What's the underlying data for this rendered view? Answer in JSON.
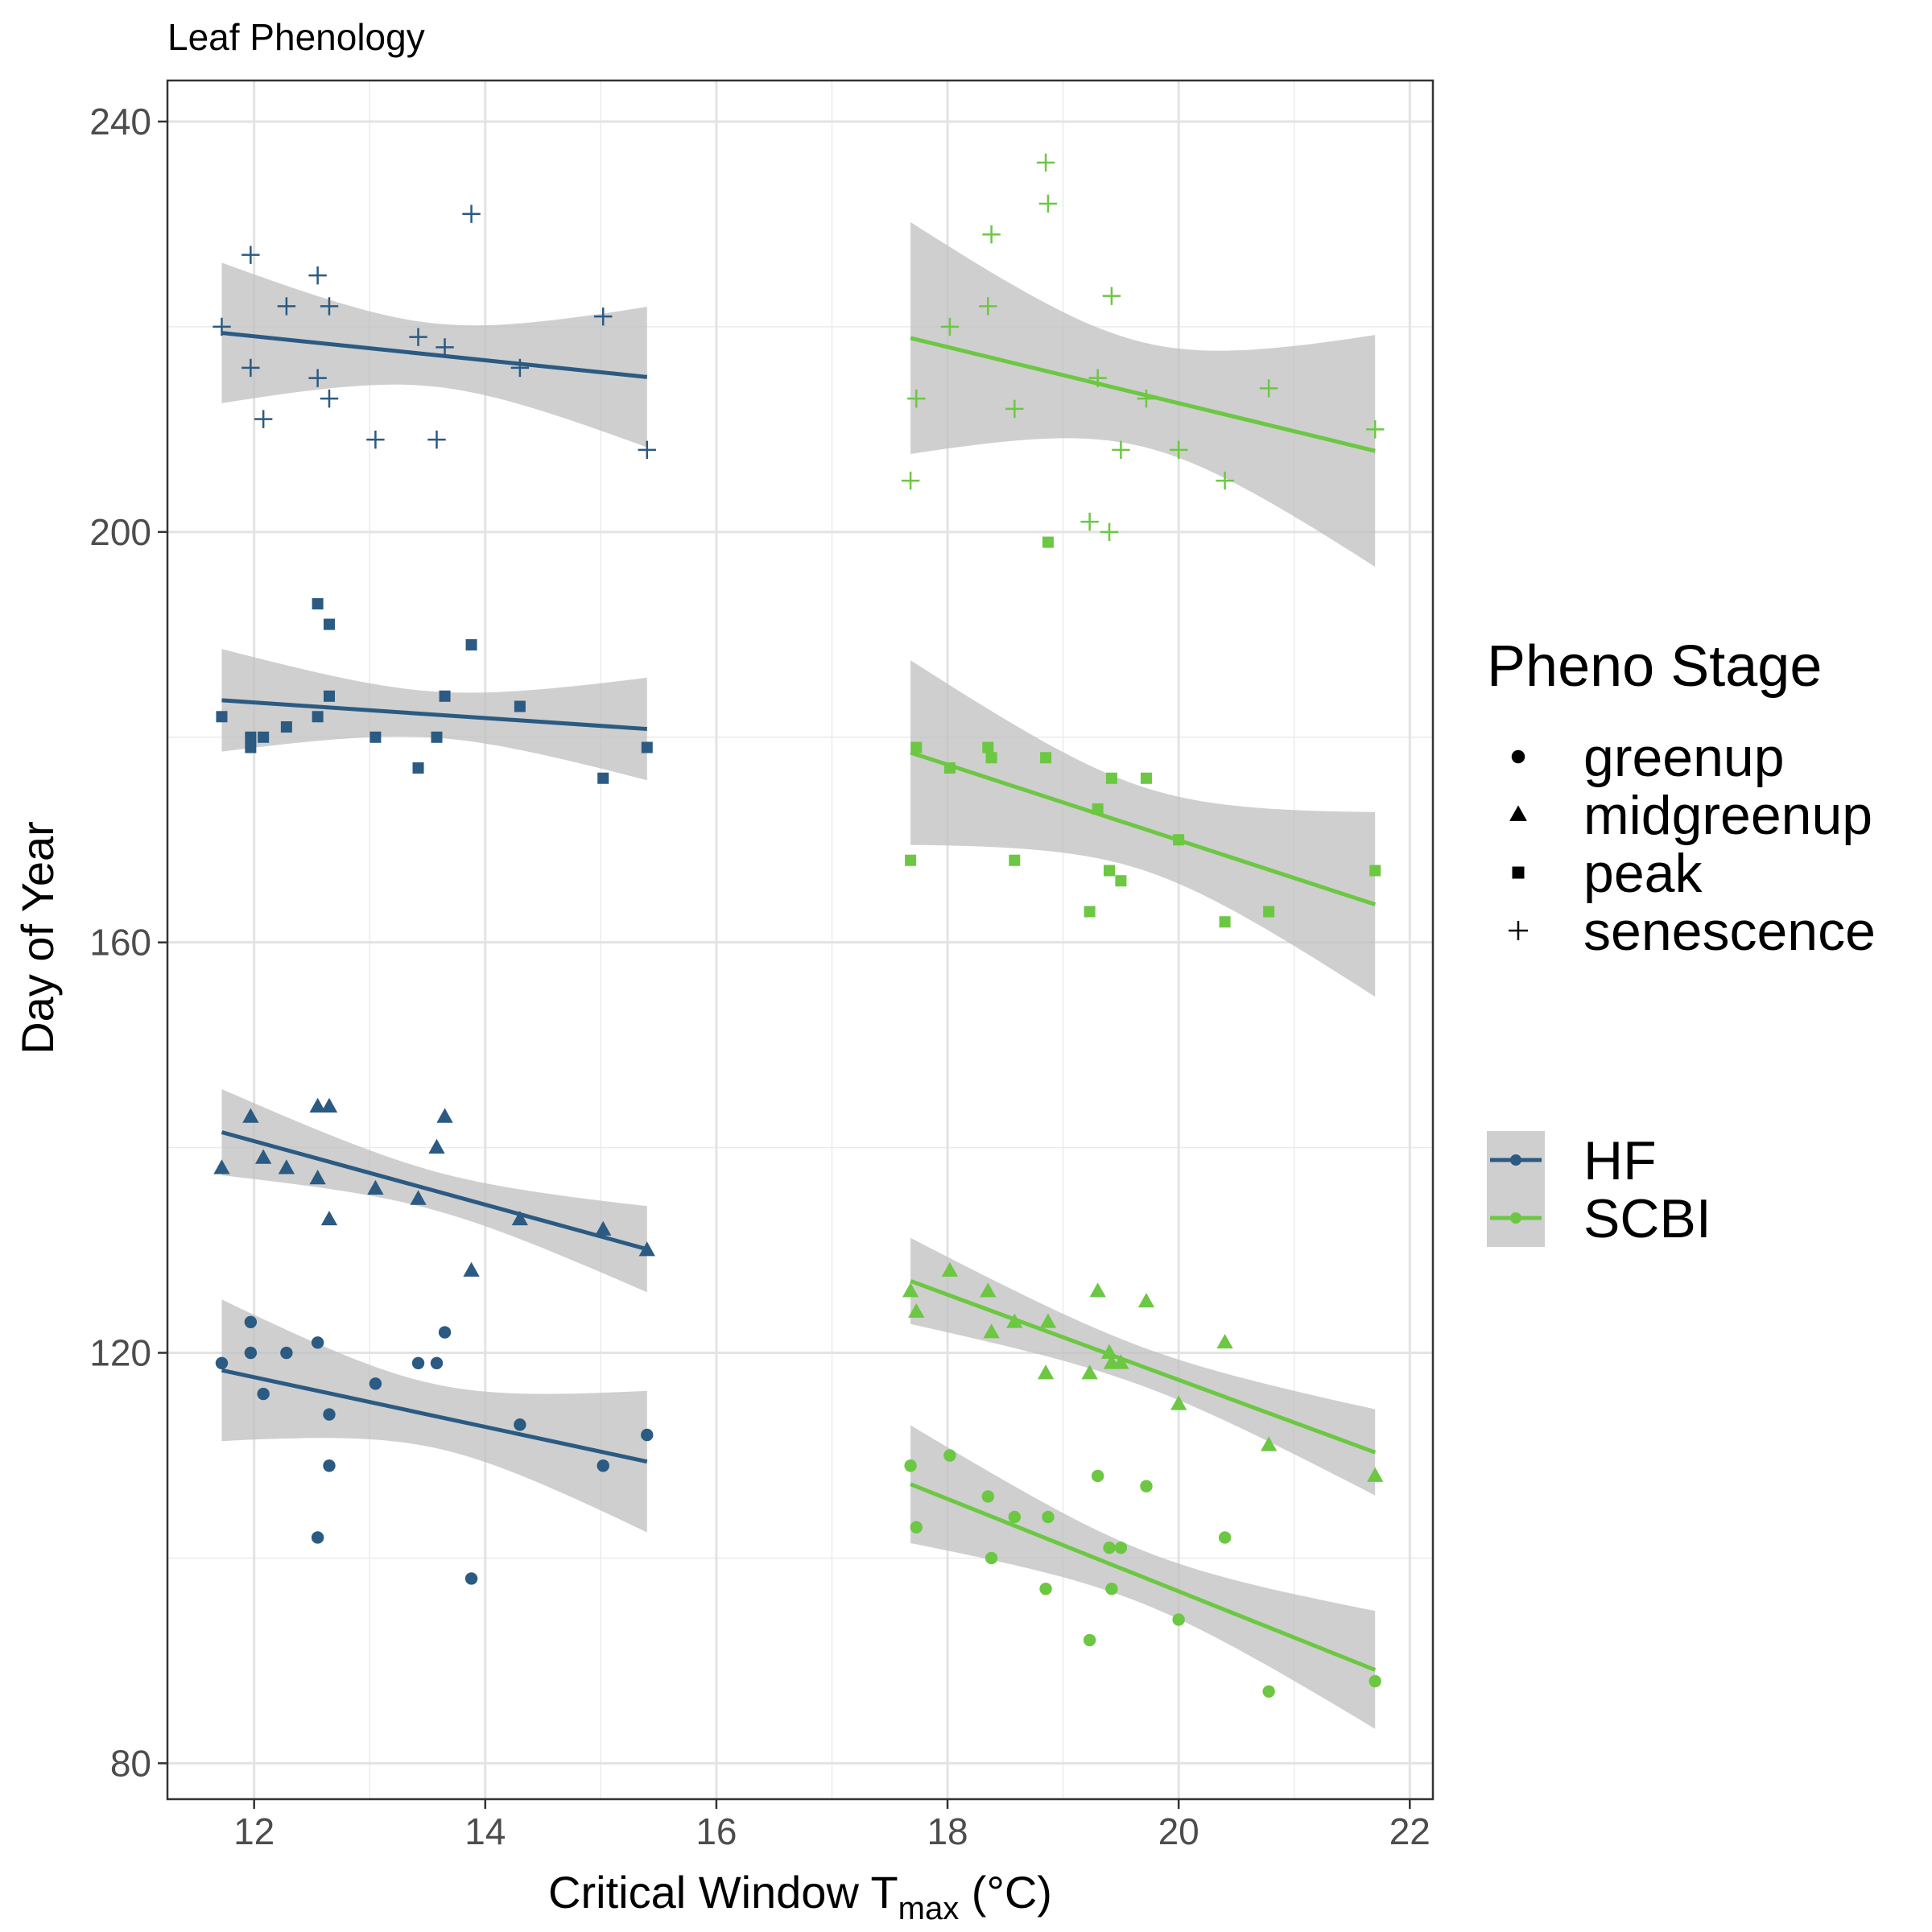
{
  "chart_data": {
    "type": "scatter",
    "title": "Leaf Phenology",
    "xlabel": {
      "main": "Critical Window T",
      "sub": "max",
      "unit": " (°C)"
    },
    "ylabel": "Day of Year",
    "xlim": [
      11.25,
      22.2
    ],
    "ylim": [
      76.5,
      244
    ],
    "x_ticks": [
      12,
      14,
      16,
      18,
      20,
      22
    ],
    "y_ticks": [
      80,
      120,
      160,
      200,
      240
    ],
    "grid": true,
    "legend_position": "right",
    "shape_legend": {
      "title": "Pheno Stage",
      "items": [
        {
          "label": "greenup",
          "shape": "circle"
        },
        {
          "label": "midgreenup",
          "shape": "triangle"
        },
        {
          "label": "peak",
          "shape": "square"
        },
        {
          "label": "senescence",
          "shape": "plus"
        }
      ]
    },
    "color_legend": {
      "items": [
        {
          "label": "HF",
          "color": "#2b5a82"
        },
        {
          "label": "SCBI",
          "color": "#6cc743"
        }
      ]
    },
    "ribbon_color": "#bfbfbf",
    "series": [
      {
        "site": "HF",
        "stage": "greenup",
        "shape": "circle",
        "color": "#2b5a82",
        "points": [
          [
            11.72,
            119
          ],
          [
            11.97,
            123
          ],
          [
            11.97,
            120
          ],
          [
            12.08,
            116
          ],
          [
            12.28,
            120
          ],
          [
            12.55,
            121
          ],
          [
            12.55,
            102
          ],
          [
            12.65,
            114
          ],
          [
            12.65,
            109
          ],
          [
            13.05,
            117
          ],
          [
            13.42,
            119
          ],
          [
            13.58,
            119
          ],
          [
            13.65,
            122
          ],
          [
            13.88,
            98
          ],
          [
            14.3,
            113
          ],
          [
            15.02,
            109
          ],
          [
            15.4,
            112
          ]
        ],
        "fit": {
          "x0": 11.72,
          "x1": 15.4,
          "y0": 118.3,
          "y1": 109.4
        },
        "band": {
          "lower": [
            112.9,
            101.0
          ],
          "upper": [
            123.7,
            117.8
          ]
        }
      },
      {
        "site": "HF",
        "stage": "midgreenup",
        "shape": "triangle",
        "color": "#2b5a82",
        "points": [
          [
            11.72,
            138
          ],
          [
            11.97,
            143
          ],
          [
            12.08,
            139
          ],
          [
            12.28,
            138
          ],
          [
            12.55,
            144
          ],
          [
            12.55,
            137
          ],
          [
            12.65,
            144
          ],
          [
            12.65,
            133
          ],
          [
            13.05,
            136
          ],
          [
            13.42,
            135
          ],
          [
            13.58,
            140
          ],
          [
            13.65,
            143
          ],
          [
            13.88,
            128
          ],
          [
            14.3,
            133
          ],
          [
            15.02,
            132
          ],
          [
            15.4,
            130
          ]
        ],
        "fit": {
          "x0": 11.72,
          "x1": 15.4,
          "y0": 141.5,
          "y1": 130.1
        },
        "band": {
          "lower": [
            137.9,
            125.3
          ],
          "upper": [
            145.1,
            134.9
          ]
        }
      },
      {
        "site": "HF",
        "stage": "peak",
        "shape": "square",
        "color": "#2b5a82",
        "points": [
          [
            11.72,
            182
          ],
          [
            11.97,
            180
          ],
          [
            11.97,
            179
          ],
          [
            12.08,
            180
          ],
          [
            12.28,
            181
          ],
          [
            12.55,
            193
          ],
          [
            12.55,
            182
          ],
          [
            12.65,
            191
          ],
          [
            12.65,
            184
          ],
          [
            13.05,
            180
          ],
          [
            13.42,
            177
          ],
          [
            13.58,
            180
          ],
          [
            13.65,
            184
          ],
          [
            13.88,
            189
          ],
          [
            14.3,
            183
          ],
          [
            15.02,
            176
          ],
          [
            15.4,
            179
          ]
        ],
        "fit": {
          "x0": 11.72,
          "x1": 15.4,
          "y0": 183.6,
          "y1": 180.8
        },
        "band": {
          "lower": [
            179.6,
            174.8
          ],
          "upper": [
            187.6,
            186.8
          ]
        }
      },
      {
        "site": "HF",
        "stage": "senescence",
        "shape": "plus",
        "color": "#2b5a82",
        "points": [
          [
            11.72,
            220
          ],
          [
            11.97,
            227
          ],
          [
            11.97,
            216
          ],
          [
            12.08,
            211
          ],
          [
            12.28,
            222
          ],
          [
            12.55,
            225
          ],
          [
            12.55,
            215
          ],
          [
            12.65,
            222
          ],
          [
            12.65,
            213
          ],
          [
            13.05,
            209
          ],
          [
            13.42,
            219
          ],
          [
            13.58,
            209
          ],
          [
            13.65,
            218
          ],
          [
            13.88,
            231
          ],
          [
            14.3,
            216
          ],
          [
            15.02,
            221
          ],
          [
            15.4,
            208
          ]
        ],
        "fit": {
          "x0": 11.72,
          "x1": 15.4,
          "y0": 219.4,
          "y1": 215.1
        },
        "band": {
          "lower": [
            213.8,
            207.0
          ],
          "upper": [
            225.0,
            223.2
          ]
        }
      },
      {
        "site": "SCBI",
        "stage": "greenup",
        "shape": "circle",
        "color": "#6cc743",
        "points": [
          [
            17.68,
            109
          ],
          [
            17.73,
            103
          ],
          [
            18.02,
            110
          ],
          [
            18.35,
            106
          ],
          [
            18.38,
            100
          ],
          [
            18.58,
            104
          ],
          [
            18.85,
            97
          ],
          [
            18.87,
            104
          ],
          [
            19.23,
            92
          ],
          [
            19.3,
            108
          ],
          [
            19.4,
            101
          ],
          [
            19.42,
            97
          ],
          [
            19.5,
            101
          ],
          [
            19.72,
            107
          ],
          [
            20.0,
            94
          ],
          [
            20.4,
            102
          ],
          [
            20.78,
            87
          ],
          [
            21.7,
            88
          ]
        ],
        "fit": {
          "x0": 17.68,
          "x1": 21.7,
          "y0": 107.2,
          "y1": 89.1
        },
        "band": {
          "lower": [
            102.2,
            82.6
          ],
          "upper": [
            112.2,
            95.6
          ]
        }
      },
      {
        "site": "SCBI",
        "stage": "midgreenup",
        "shape": "triangle",
        "color": "#6cc743",
        "points": [
          [
            17.68,
            126
          ],
          [
            17.73,
            124
          ],
          [
            18.02,
            128
          ],
          [
            18.35,
            126
          ],
          [
            18.38,
            122
          ],
          [
            18.58,
            123
          ],
          [
            18.85,
            118
          ],
          [
            18.87,
            123
          ],
          [
            19.23,
            118
          ],
          [
            19.3,
            126
          ],
          [
            19.4,
            120
          ],
          [
            19.42,
            119
          ],
          [
            19.5,
            119
          ],
          [
            19.72,
            125
          ],
          [
            20.0,
            115
          ],
          [
            20.4,
            121
          ],
          [
            20.78,
            111
          ],
          [
            21.7,
            108
          ]
        ],
        "fit": {
          "x0": 17.68,
          "x1": 21.7,
          "y0": 127.0,
          "y1": 110.3
        },
        "band": {
          "lower": [
            123.8,
            105.1
          ],
          "upper": [
            130.2,
            115.5
          ]
        }
      },
      {
        "site": "SCBI",
        "stage": "peak",
        "shape": "square",
        "color": "#6cc743",
        "points": [
          [
            17.68,
            168
          ],
          [
            17.73,
            179
          ],
          [
            18.02,
            177
          ],
          [
            18.35,
            179
          ],
          [
            18.38,
            178
          ],
          [
            18.58,
            168
          ],
          [
            18.85,
            178
          ],
          [
            18.87,
            199
          ],
          [
            19.23,
            163
          ],
          [
            19.3,
            173
          ],
          [
            19.4,
            167
          ],
          [
            19.42,
            176
          ],
          [
            19.5,
            166
          ],
          [
            19.72,
            176
          ],
          [
            20.0,
            170
          ],
          [
            20.4,
            162
          ],
          [
            20.78,
            163
          ],
          [
            21.7,
            167
          ]
        ],
        "fit": {
          "x0": 17.68,
          "x1": 21.7,
          "y0": 178.5,
          "y1": 163.7
        },
        "band": {
          "lower": [
            171.2,
            153.0
          ],
          "upper": [
            185.8,
            174.4
          ]
        }
      },
      {
        "site": "SCBI",
        "stage": "senescence",
        "shape": "plus",
        "color": "#6cc743",
        "points": [
          [
            17.68,
            205
          ],
          [
            17.73,
            213
          ],
          [
            18.02,
            220
          ],
          [
            18.35,
            222
          ],
          [
            18.38,
            229
          ],
          [
            18.58,
            212
          ],
          [
            18.85,
            236
          ],
          [
            18.87,
            232
          ],
          [
            19.23,
            201
          ],
          [
            19.3,
            215
          ],
          [
            19.4,
            200
          ],
          [
            19.42,
            223
          ],
          [
            19.5,
            208
          ],
          [
            19.72,
            213
          ],
          [
            20.0,
            208
          ],
          [
            20.4,
            205
          ],
          [
            20.78,
            214
          ],
          [
            21.7,
            210
          ]
        ],
        "fit": {
          "x0": 17.68,
          "x1": 21.7,
          "y0": 218.9,
          "y1": 207.9
        },
        "band": {
          "lower": [
            209.6,
            194.6
          ],
          "upper": [
            228.2,
            221.2
          ]
        }
      }
    ]
  }
}
